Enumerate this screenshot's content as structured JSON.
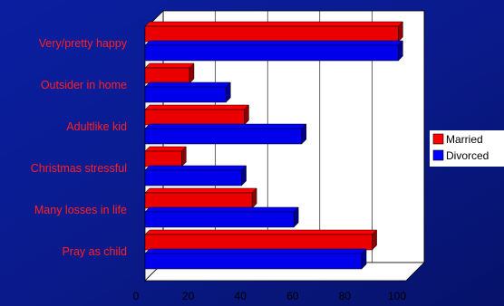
{
  "chart_data": {
    "type": "bar",
    "orientation": "horizontal",
    "three_d": true,
    "categories": [
      "Very/pretty happy",
      "Outsider in home",
      "Adultlike kid",
      "Christmas stressful",
      "Many losses in life",
      "Pray as child"
    ],
    "series": [
      {
        "name": "Married",
        "color": "#ff0000",
        "values": [
          97,
          17,
          38,
          14,
          41,
          87
        ]
      },
      {
        "name": "Divorced",
        "color": "#0000ff",
        "values": [
          97,
          31,
          60,
          37,
          57,
          83
        ]
      }
    ],
    "xlim": [
      0,
      100
    ],
    "x_ticks": [
      0,
      20,
      40,
      60,
      80,
      100
    ],
    "grid": true,
    "legend": "right"
  }
}
